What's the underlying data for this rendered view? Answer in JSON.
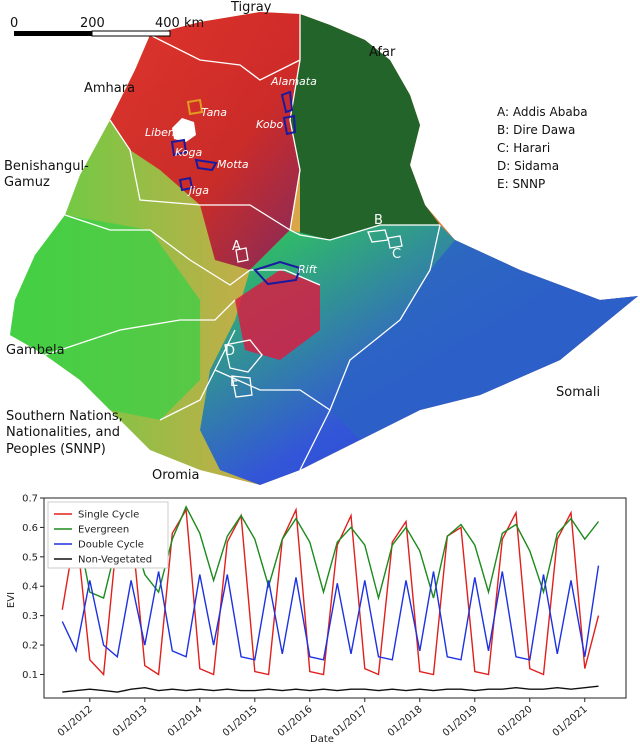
{
  "map": {
    "scale": {
      "labels": [
        "0",
        "200",
        "400 km"
      ]
    },
    "regions": [
      "Tigray",
      "Afar",
      "Amhara",
      "Benishangul-",
      "Gamuz",
      "Gambela",
      "Southern Nations,",
      "Nationalities, and",
      "Peoples (SNNP)",
      "Oromia",
      "Somali"
    ],
    "region_keys": {
      "A": "A",
      "B": "B",
      "C": "C",
      "D": "D",
      "E": "E"
    },
    "sites": [
      "Alamata",
      "Kobo",
      "Tana",
      "Liben",
      "Koga",
      "Motta",
      "Jiga",
      "Rift"
    ],
    "key": [
      "A: Addis Ababa",
      "B: Dire Dawa",
      "C: Harari",
      "D: Sidama",
      "E: SNNP"
    ],
    "colors": {
      "single": "#e0201c",
      "evergreen": "#1c6e1c",
      "double": "#1d3fe0",
      "border": "#ffffff",
      "site": "#1a1aa0"
    }
  },
  "chart_data": {
    "type": "line",
    "xlabel": "Date",
    "ylabel": "EVI",
    "ylim": [
      0.02,
      0.7
    ],
    "yticks": [
      "0.1",
      "0.2",
      "0.3",
      "0.4",
      "0.5",
      "0.6",
      "0.7"
    ],
    "xticks": [
      "01/2012",
      "01/2013",
      "01/2014",
      "01/2015",
      "01/2016",
      "01/2017",
      "01/2018",
      "01/2019",
      "01/2020",
      "01/2021"
    ],
    "x": [
      "2011-07",
      "2011-10",
      "2012-01",
      "2012-04",
      "2012-07",
      "2012-10",
      "2013-01",
      "2013-04",
      "2013-07",
      "2013-10",
      "2014-01",
      "2014-04",
      "2014-07",
      "2014-10",
      "2015-01",
      "2015-04",
      "2015-07",
      "2015-10",
      "2016-01",
      "2016-04",
      "2016-07",
      "2016-10",
      "2017-01",
      "2017-04",
      "2017-07",
      "2017-10",
      "2018-01",
      "2018-04",
      "2018-07",
      "2018-10",
      "2019-01",
      "2019-04",
      "2019-07",
      "2019-10",
      "2020-01",
      "2020-04",
      "2020-07",
      "2020-10",
      "2021-01",
      "2021-04"
    ],
    "series": [
      {
        "name": "Single Cycle",
        "color": "#e0201c",
        "values": [
          0.32,
          0.6,
          0.15,
          0.1,
          0.58,
          0.62,
          0.13,
          0.1,
          0.58,
          0.66,
          0.12,
          0.1,
          0.55,
          0.64,
          0.11,
          0.1,
          0.56,
          0.66,
          0.11,
          0.1,
          0.54,
          0.64,
          0.12,
          0.1,
          0.55,
          0.62,
          0.11,
          0.1,
          0.57,
          0.6,
          0.11,
          0.1,
          0.56,
          0.65,
          0.12,
          0.1,
          0.56,
          0.65,
          0.12,
          0.3
        ]
      },
      {
        "name": "Evergreen",
        "color": "#1c8a1c",
        "values": [
          0.5,
          0.62,
          0.38,
          0.36,
          0.55,
          0.6,
          0.44,
          0.38,
          0.56,
          0.67,
          0.58,
          0.42,
          0.57,
          0.64,
          0.56,
          0.4,
          0.56,
          0.63,
          0.55,
          0.38,
          0.55,
          0.6,
          0.54,
          0.36,
          0.54,
          0.6,
          0.52,
          0.36,
          0.57,
          0.61,
          0.54,
          0.38,
          0.58,
          0.61,
          0.52,
          0.38,
          0.58,
          0.63,
          0.56,
          0.62
        ]
      },
      {
        "name": "Double Cycle",
        "color": "#1d32e0",
        "values": [
          0.28,
          0.18,
          0.42,
          0.2,
          0.16,
          0.42,
          0.2,
          0.45,
          0.18,
          0.16,
          0.44,
          0.2,
          0.44,
          0.16,
          0.15,
          0.42,
          0.17,
          0.43,
          0.16,
          0.15,
          0.41,
          0.17,
          0.42,
          0.16,
          0.15,
          0.42,
          0.18,
          0.45,
          0.16,
          0.15,
          0.43,
          0.18,
          0.45,
          0.16,
          0.15,
          0.44,
          0.17,
          0.42,
          0.16,
          0.47
        ]
      },
      {
        "name": "Non-Vegetated",
        "color": "#111111",
        "values": [
          0.04,
          0.045,
          0.05,
          0.045,
          0.04,
          0.05,
          0.055,
          0.045,
          0.05,
          0.045,
          0.05,
          0.045,
          0.05,
          0.045,
          0.045,
          0.05,
          0.045,
          0.05,
          0.045,
          0.05,
          0.045,
          0.05,
          0.05,
          0.045,
          0.05,
          0.045,
          0.05,
          0.045,
          0.05,
          0.05,
          0.045,
          0.05,
          0.05,
          0.055,
          0.05,
          0.05,
          0.055,
          0.05,
          0.055,
          0.06
        ]
      }
    ],
    "legend": "top-left",
    "grid": false
  }
}
